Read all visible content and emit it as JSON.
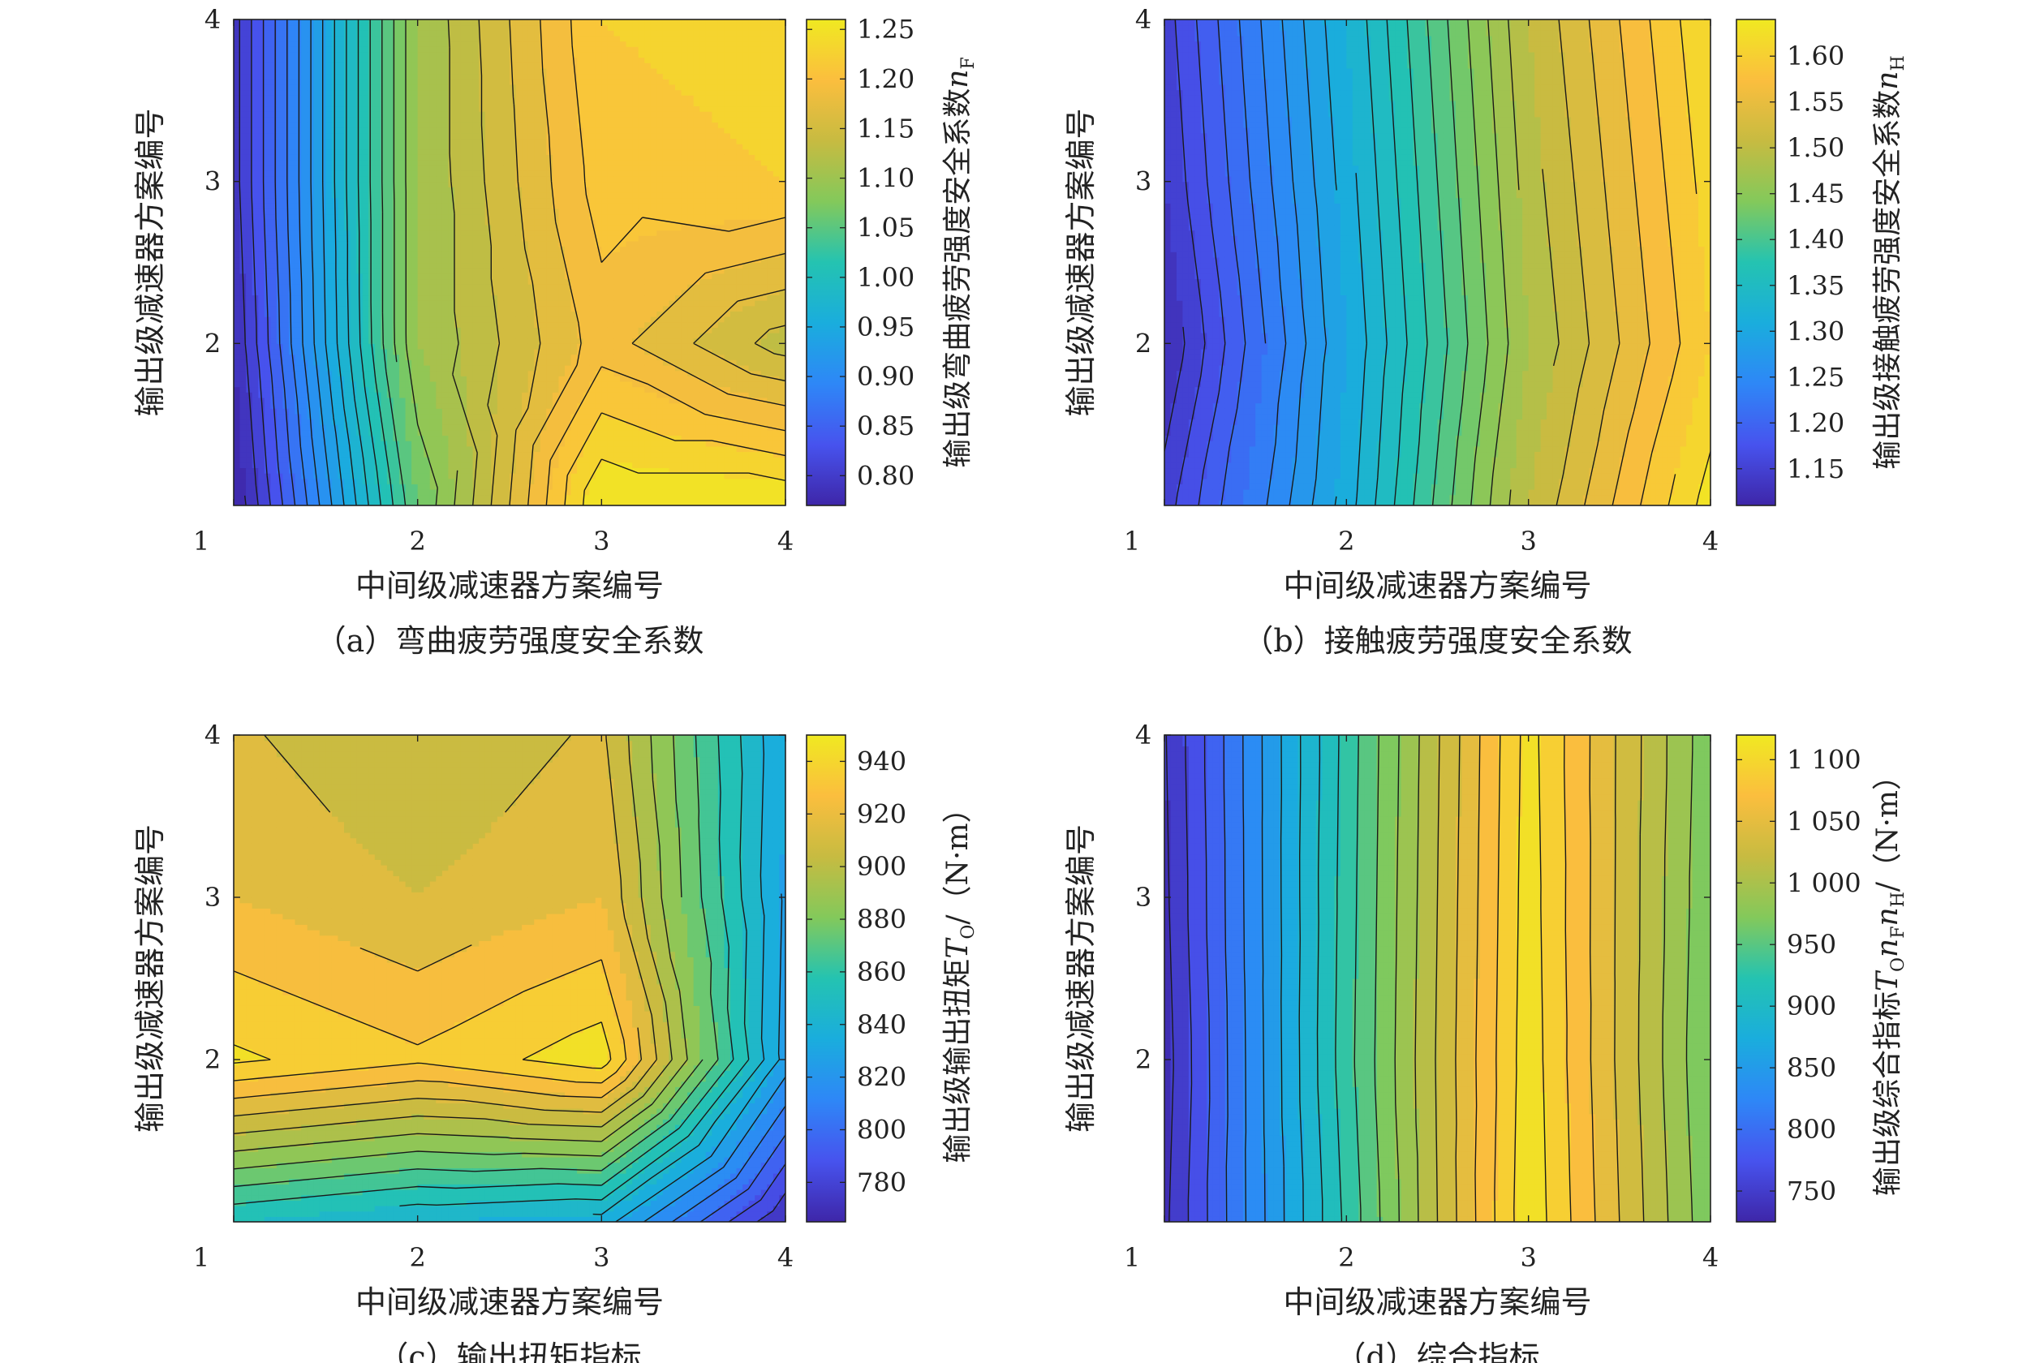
{
  "chart_data": [
    {
      "type": "contour",
      "caption": "（a）弯曲疲劳强度安全系数",
      "xlabel": "中间级减速器方案编号",
      "ylabel": "输出级减速器方案编号",
      "x_ticks": [
        "1",
        "2",
        "3",
        "4"
      ],
      "y_ticks": [
        "2",
        "3",
        "4"
      ],
      "xlim": [
        1,
        4
      ],
      "ylim": [
        1,
        4
      ],
      "x": [
        1,
        2,
        3,
        4
      ],
      "y": [
        1,
        2,
        3,
        4
      ],
      "z": [
        [
          0.76,
          1.06,
          1.26,
          1.26
        ],
        [
          0.78,
          1.1,
          1.19,
          1.13
        ],
        [
          0.79,
          1.1,
          1.21,
          1.22
        ],
        [
          0.79,
          1.1,
          1.22,
          1.23
        ]
      ],
      "levels": [
        0.78,
        0.8,
        0.82,
        0.84,
        0.86,
        0.88,
        0.9,
        0.92,
        0.94,
        0.96,
        0.98,
        1.0,
        1.02,
        1.04,
        1.06,
        1.08,
        1.1,
        1.12,
        1.14,
        1.16,
        1.18,
        1.2,
        1.22,
        1.24
      ],
      "colorbar": {
        "label": "输出级弯曲疲劳强度安全系数",
        "label_symbol": "n",
        "label_sub": "F",
        "label_unit": "",
        "range": [
          0.77,
          1.26
        ],
        "ticks": [
          0.8,
          0.85,
          0.9,
          0.95,
          1.0,
          1.05,
          1.1,
          1.15,
          1.2,
          1.25
        ],
        "tick_labels": [
          "0.80",
          "0.85",
          "0.90",
          "0.95",
          "1.00",
          "1.05",
          "1.10",
          "1.15",
          "1.20",
          "1.25"
        ]
      }
    },
    {
      "type": "contour",
      "caption": "（b）接触疲劳强度安全系数",
      "xlabel": "中间级减速器方案编号",
      "ylabel": "输出级减速器方案编号",
      "x_ticks": [
        "1",
        "2",
        "3",
        "4"
      ],
      "y_ticks": [
        "2",
        "3",
        "4"
      ],
      "xlim": [
        1,
        4
      ],
      "ylim": [
        1,
        4
      ],
      "x": [
        1,
        2,
        3,
        4
      ],
      "y": [
        1,
        2,
        3,
        4
      ],
      "z": [
        [
          1.15,
          1.31,
          1.5,
          1.63
        ],
        [
          1.12,
          1.3,
          1.48,
          1.6
        ],
        [
          1.14,
          1.31,
          1.49,
          1.61
        ],
        [
          1.15,
          1.32,
          1.5,
          1.62
        ]
      ],
      "levels": [
        1.12,
        1.14,
        1.16,
        1.18,
        1.2,
        1.22,
        1.24,
        1.26,
        1.28,
        1.3,
        1.32,
        1.34,
        1.36,
        1.38,
        1.4,
        1.42,
        1.44,
        1.46,
        1.48,
        1.5,
        1.52,
        1.54,
        1.56,
        1.58,
        1.6,
        1.62
      ],
      "colorbar": {
        "label": "输出级接触疲劳强度安全系数",
        "label_symbol": "n",
        "label_sub": "H",
        "label_unit": "",
        "range": [
          1.11,
          1.64
        ],
        "ticks": [
          1.15,
          1.2,
          1.25,
          1.3,
          1.35,
          1.4,
          1.45,
          1.5,
          1.55,
          1.6
        ],
        "tick_labels": [
          "1.15",
          "1.20",
          "1.25",
          "1.30",
          "1.35",
          "1.40",
          "1.45",
          "1.50",
          "1.55",
          "1.60"
        ]
      }
    },
    {
      "type": "contour",
      "caption": "（c）输出扭矩指标",
      "xlabel": "中间级减速器方案编号",
      "ylabel": "输出级减速器方案编号",
      "x_ticks": [
        "1",
        "2",
        "3",
        "4"
      ],
      "y_ticks": [
        "2",
        "3",
        "4"
      ],
      "xlim": [
        1,
        4
      ],
      "ylim": [
        1,
        4
      ],
      "x": [
        1,
        2,
        3,
        4
      ],
      "y": [
        1,
        2,
        3,
        4
      ],
      "z": [
        [
          850,
          840,
          835,
          770
        ],
        [
          942,
          932,
          946,
          826
        ],
        [
          920,
          910,
          920,
          828
        ],
        [
          912,
          900,
          912,
          830
        ]
      ],
      "levels": [
        770,
        780,
        790,
        800,
        810,
        820,
        830,
        840,
        850,
        860,
        870,
        880,
        890,
        900,
        910,
        920,
        930,
        940
      ],
      "colorbar": {
        "label": "输出级输出扭矩",
        "label_symbol": "T",
        "label_sub": "O",
        "label_unit": "/（N·m）",
        "range": [
          765,
          950
        ],
        "ticks": [
          780,
          800,
          820,
          840,
          860,
          880,
          900,
          920,
          940
        ],
        "tick_labels": [
          "780",
          "800",
          "820",
          "840",
          "860",
          "880",
          "900",
          "920",
          "940"
        ]
      }
    },
    {
      "type": "contour",
      "caption": "（d）综合指标",
      "xlabel": "中间级减速器方案编号",
      "ylabel": "输出级减速器方案编号",
      "x_ticks": [
        "1",
        "2",
        "3",
        "4"
      ],
      "y_ticks": [
        "2",
        "3",
        "4"
      ],
      "xlim": [
        1,
        4
      ],
      "ylim": [
        1,
        4
      ],
      "x": [
        1,
        2,
        3,
        4
      ],
      "y": [
        1,
        2,
        3,
        4
      ],
      "z": [
        [
          735,
          925,
          1115,
          965
        ],
        [
          730,
          932,
          1112,
          960
        ],
        [
          735,
          930,
          1110,
          963
        ],
        [
          738,
          928,
          1108,
          966
        ]
      ],
      "levels": [
        740,
        760,
        780,
        800,
        820,
        840,
        860,
        880,
        900,
        920,
        940,
        960,
        980,
        1000,
        1020,
        1040,
        1060,
        1080,
        1100
      ],
      "colorbar": {
        "label": "输出级综合指标",
        "label_symbol": "T",
        "label_sub": "O",
        "label_symbol2": "n",
        "label_sub2": "F",
        "label_symbol3": "n",
        "label_sub3": "H",
        "label_unit": "/（N·m）",
        "range": [
          725,
          1120
        ],
        "ticks": [
          750,
          800,
          850,
          900,
          950,
          1000,
          1050,
          1100
        ],
        "tick_labels": [
          "750",
          "800",
          "850",
          "900",
          "950",
          "1 000",
          "1 050",
          "1 100"
        ]
      }
    }
  ]
}
